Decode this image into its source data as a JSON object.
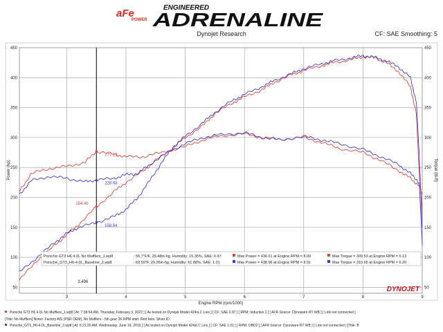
{
  "header": {
    "logo_text": "aFe",
    "logo_sub": "POWER",
    "brand_top": "ENGINEERED",
    "brand_main": "ADRENALINE",
    "subtitle": "Dynojet Research",
    "settings": "CF: SAE Smoothing: 5"
  },
  "colors": {
    "red": "#e0403a",
    "blue": "#3b3ad0",
    "grid": "#9a9a9a",
    "frame": "#cccccc"
  },
  "chart_data": {
    "type": "line",
    "xlabel": "Engine RPM (rpm/1000)",
    "ylabel_left": "Power (hp)",
    "ylabel_right": "Torque (lb-ft)",
    "xlim": [
      2.2,
      9.0
    ],
    "ylim": [
      40,
      450
    ],
    "x_ticks": [
      "3",
      "4",
      "5",
      "6",
      "7",
      "8",
      "9"
    ],
    "y_ticks_left": [
      "50",
      "100",
      "150",
      "200",
      "250",
      "300",
      "350",
      "400",
      "450"
    ],
    "y_ticks_right": [
      "50",
      "100",
      "150",
      "200",
      "250",
      "300",
      "350",
      "400",
      "450"
    ],
    "cursor": {
      "x": 3.5,
      "label": "3.496"
    },
    "annotations": [
      {
        "text": "277.13",
        "x": 3.5,
        "y": 277.13,
        "series": "red"
      },
      {
        "text": "184.45",
        "x": 3.5,
        "y": 184.45,
        "series": "red"
      },
      {
        "text": "228.68",
        "x": 3.5,
        "y": 228.68,
        "series": "blue"
      },
      {
        "text": "158.84",
        "x": 3.5,
        "y": 158.84,
        "series": "blue"
      }
    ],
    "series": [
      {
        "color": "red",
        "kind": "power",
        "x": [
          2.2,
          2.5,
          2.8,
          3.0,
          3.2,
          3.5,
          3.8,
          4.0,
          4.3,
          4.5,
          4.8,
          5.0,
          5.3,
          5.5,
          5.8,
          6.0,
          6.3,
          6.5,
          6.8,
          7.0,
          7.3,
          7.5,
          7.8,
          8.0,
          8.2,
          8.4,
          8.6,
          8.8,
          8.9,
          8.95,
          9.0
        ],
        "values": [
          62,
          95,
          120,
          138,
          155,
          184,
          210,
          225,
          245,
          262,
          283,
          300,
          320,
          340,
          358,
          368,
          380,
          392,
          405,
          412,
          420,
          425,
          430,
          435,
          433,
          425,
          410,
          385,
          340,
          240,
          180
        ]
      },
      {
        "color": "blue",
        "kind": "power",
        "x": [
          2.2,
          2.5,
          2.8,
          3.0,
          3.2,
          3.5,
          3.8,
          4.0,
          4.2,
          4.4,
          4.6,
          4.8,
          5.0,
          5.3,
          5.5,
          5.8,
          6.0,
          6.3,
          6.5,
          6.8,
          7.0,
          7.3,
          7.5,
          7.8,
          8.0,
          8.2,
          8.4,
          8.6,
          8.8,
          8.9,
          8.95,
          9.0
        ],
        "values": [
          75,
          100,
          125,
          140,
          150,
          158,
          168,
          180,
          200,
          228,
          258,
          285,
          302,
          325,
          342,
          362,
          372,
          385,
          395,
          407,
          415,
          423,
          428,
          433,
          437,
          434,
          428,
          418,
          400,
          360,
          270,
          150
        ]
      },
      {
        "color": "red",
        "kind": "torque",
        "x": [
          2.2,
          2.4,
          2.7,
          3.0,
          3.3,
          3.5,
          3.8,
          4.0,
          4.3,
          4.6,
          5.0,
          5.3,
          5.6,
          6.0,
          6.3,
          6.6,
          7.0,
          7.3,
          7.6,
          8.0,
          8.3,
          8.6,
          8.8,
          8.95,
          9.0
        ],
        "values": [
          210,
          240,
          248,
          252,
          258,
          277,
          272,
          268,
          268,
          275,
          285,
          296,
          303,
          306,
          300,
          297,
          300,
          292,
          282,
          275,
          262,
          245,
          232,
          220,
          205
        ]
      },
      {
        "color": "blue",
        "kind": "torque",
        "x": [
          2.2,
          2.4,
          2.7,
          3.0,
          3.3,
          3.5,
          3.8,
          4.0,
          4.2,
          4.4,
          4.7,
          5.0,
          5.3,
          5.6,
          6.0,
          6.3,
          6.6,
          7.0,
          7.3,
          7.6,
          8.0,
          8.3,
          8.6,
          8.8,
          8.95,
          9.0
        ],
        "values": [
          205,
          228,
          235,
          232,
          226,
          229,
          232,
          238,
          240,
          255,
          275,
          290,
          300,
          305,
          308,
          300,
          296,
          302,
          296,
          290,
          280,
          268,
          255,
          240,
          225,
          120
        ]
      }
    ],
    "legend": [
      {
        "color": "red",
        "file": "Porsche GT3 H6 4.0L No Mufflers_1.wp8",
        "conditions": ": 55.7°F/F, 29.48in-hg, Humidity: 15.35%, SAE: 0.97",
        "max_power": "Max Power = 436.51 at Engine RPM = 8.09",
        "max_torque": "Max Torque = 309.53 at Engine RPM = 6.13"
      },
      {
        "color": "blue",
        "file": "Porsche_GT3_H6-4.0L_Baseline_2.wp8",
        "conditions": ": 69.59°F, 29.26in-hg, Humidity: 61.88%, SAE: 1.01",
        "max_power": "Max Power = 438.96 at Engine RPM = 8.01",
        "max_torque": "Max Torque = 310.65 at Engine RPM = 6.20"
      }
    ]
  },
  "footer": {
    "line1": "Porsche GT3 H6 4.0L No Mufflers_1.wp8  [ At: 7:38:54 AM, Thursday, February 3, 2022  ] [ As tested on Dynojet Model 424xLC Linx ] [ CF: SAE 0.97 ] [ RPM: Inductive 1 ] [ AFR Source: Dynoware RT WB ] [ Link not connected ]",
    "line2": "[Title: No Mufflers] Notes: Factory AIS (PSR OEM), No Mufflers - 5th gear 2K RPM start. Red fans. Silver ID.",
    "line3": "Porsche_GT3_H6-4.0L_Baseline_2.wp8  [ At: 6:21:20 AM, Wednesday, June 19, 2019 ] [ As tested on Dynojet Model 424xLC Linx ] [ CF: SAE 1.01 ] [ RPM: OBD2 ] [ AFR Source: Dynoware RT WB ] [ Link not connected ] [Title: B"
  },
  "watermark": "DYNOJET"
}
